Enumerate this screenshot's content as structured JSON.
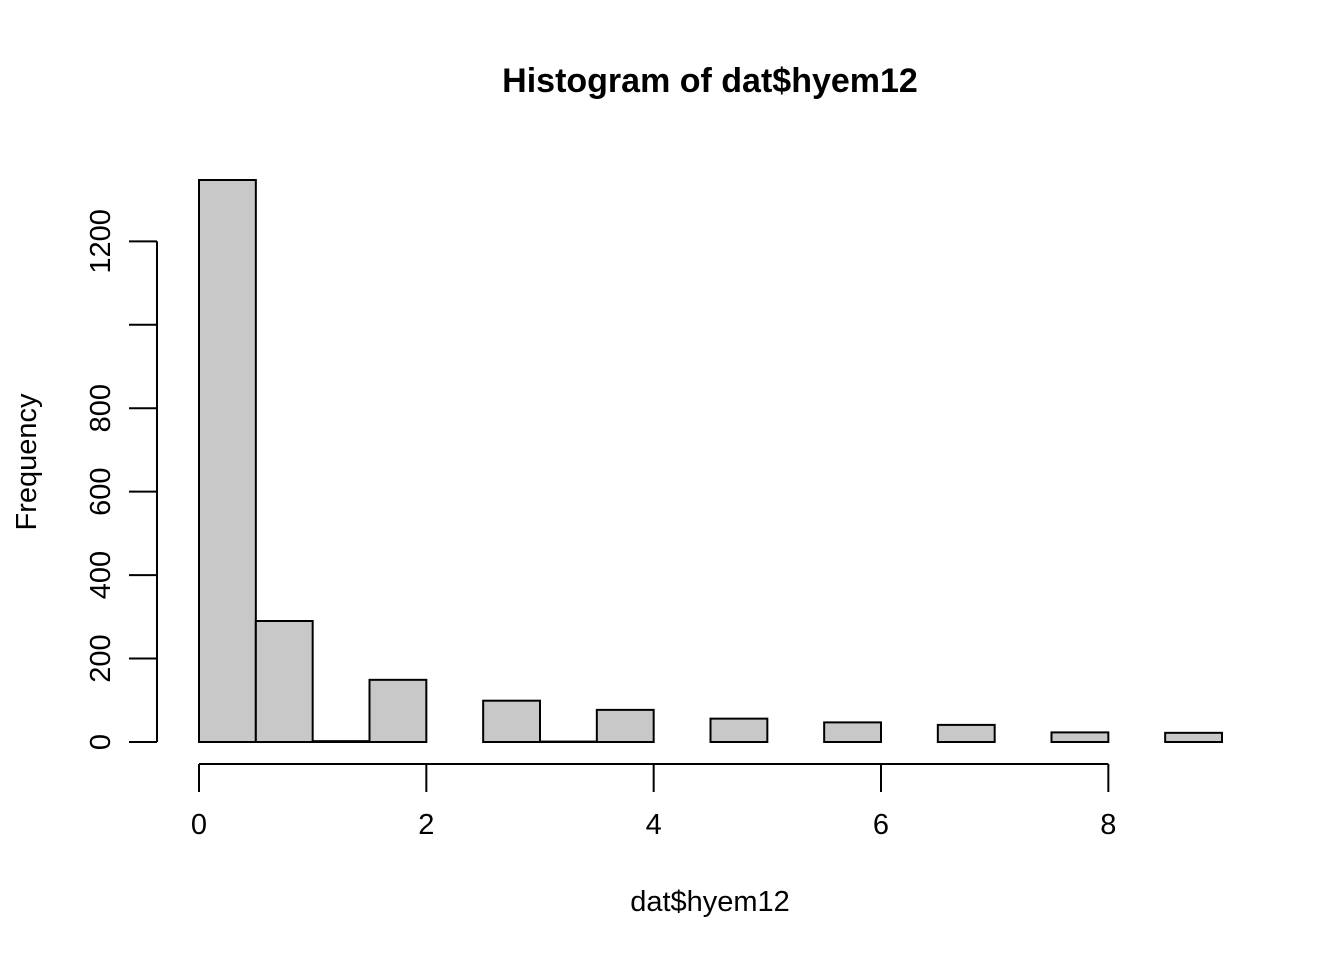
{
  "chart_data": {
    "type": "bar",
    "title": "Histogram of dat$hyem12",
    "xlabel": "dat$hyem12",
    "ylabel": "Frequency",
    "bins": [
      {
        "x0": 0.0,
        "x1": 0.5,
        "count": 1347
      },
      {
        "x0": 0.5,
        "x1": 1.0,
        "count": 290
      },
      {
        "x0": 1.0,
        "x1": 1.5,
        "count": 2
      },
      {
        "x0": 1.5,
        "x1": 2.0,
        "count": 149
      },
      {
        "x0": 2.0,
        "x1": 2.5,
        "count": 0
      },
      {
        "x0": 2.5,
        "x1": 3.0,
        "count": 99
      },
      {
        "x0": 3.0,
        "x1": 3.5,
        "count": 1
      },
      {
        "x0": 3.5,
        "x1": 4.0,
        "count": 77
      },
      {
        "x0": 4.0,
        "x1": 4.5,
        "count": 0
      },
      {
        "x0": 4.5,
        "x1": 5.0,
        "count": 56
      },
      {
        "x0": 5.0,
        "x1": 5.5,
        "count": 0
      },
      {
        "x0": 5.5,
        "x1": 6.0,
        "count": 47
      },
      {
        "x0": 6.0,
        "x1": 6.5,
        "count": 0
      },
      {
        "x0": 6.5,
        "x1": 7.0,
        "count": 41
      },
      {
        "x0": 7.0,
        "x1": 7.5,
        "count": 0
      },
      {
        "x0": 7.5,
        "x1": 8.0,
        "count": 23
      },
      {
        "x0": 8.0,
        "x1": 8.5,
        "count": 0
      },
      {
        "x0": 8.5,
        "x1": 9.0,
        "count": 22
      }
    ],
    "x_ticks": [
      0,
      2,
      4,
      6,
      8
    ],
    "x_tick_labels": [
      "0",
      "2",
      "4",
      "6",
      "8"
    ],
    "y_ticks": [
      0,
      200,
      400,
      600,
      800,
      1000,
      1200
    ],
    "y_tick_labels": [
      "0",
      "200",
      "400",
      "600",
      "800",
      "",
      "1200"
    ],
    "xlim": [
      0,
      9
    ],
    "ylim": [
      0,
      1347
    ],
    "bar_color": "#c8c8c8",
    "grid": false
  }
}
